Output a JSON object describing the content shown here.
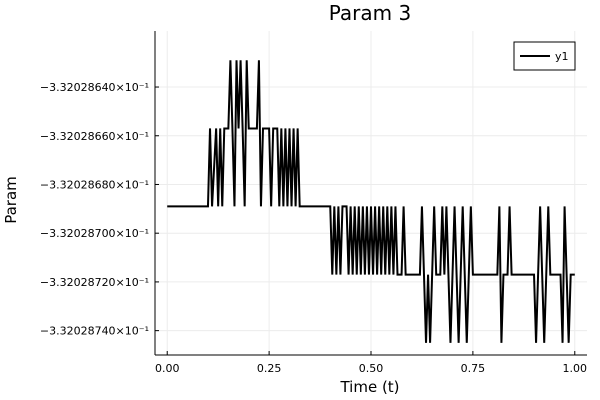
{
  "chart_data": {
    "type": "line",
    "title": "Param 3",
    "xlabel": "Time (t)",
    "ylabel": "Param",
    "xlim": [
      -0.03,
      1.03
    ],
    "ylim": [
      -0.33202875,
      -0.332028617
    ],
    "x_ticks": [
      {
        "value": 0.0,
        "label": "0.00"
      },
      {
        "value": 0.25,
        "label": "0.25"
      },
      {
        "value": 0.5,
        "label": "0.50"
      },
      {
        "value": 0.75,
        "label": "0.75"
      },
      {
        "value": 1.0,
        "label": "1.00"
      }
    ],
    "y_ticks": [
      {
        "value": -0.33202864,
        "label": "−3.32028640×10⁻¹"
      },
      {
        "value": -0.33202866,
        "label": "−3.32028660×10⁻¹"
      },
      {
        "value": -0.33202868,
        "label": "−3.32028680×10⁻¹"
      },
      {
        "value": -0.3320287,
        "label": "−3.32028700×10⁻¹"
      },
      {
        "value": -0.33202872,
        "label": "−3.32028720×10⁻¹"
      },
      {
        "value": -0.33202874,
        "label": "−3.32028740×10⁻¹"
      }
    ],
    "grid": true,
    "legend_position": "top-right",
    "colors": {
      "line": "#000000",
      "grid": "#ececec",
      "frame": "#000000"
    },
    "series": [
      {
        "name": "y1",
        "points": [
          [
            0.0,
            -0.332028689
          ],
          [
            0.1,
            -0.332028689
          ],
          [
            0.105,
            -0.332028657
          ],
          [
            0.11,
            -0.332028689
          ],
          [
            0.12,
            -0.332028657
          ],
          [
            0.125,
            -0.332028689
          ],
          [
            0.13,
            -0.332028657
          ],
          [
            0.135,
            -0.332028689
          ],
          [
            0.14,
            -0.332028657
          ],
          [
            0.15,
            -0.332028657
          ],
          [
            0.155,
            -0.332028629
          ],
          [
            0.16,
            -0.332028657
          ],
          [
            0.165,
            -0.332028689
          ],
          [
            0.17,
            -0.332028629
          ],
          [
            0.175,
            -0.332028657
          ],
          [
            0.18,
            -0.332028629
          ],
          [
            0.185,
            -0.332028657
          ],
          [
            0.19,
            -0.332028689
          ],
          [
            0.195,
            -0.332028629
          ],
          [
            0.2,
            -0.332028657
          ],
          [
            0.22,
            -0.332028657
          ],
          [
            0.225,
            -0.332028629
          ],
          [
            0.23,
            -0.332028689
          ],
          [
            0.235,
            -0.332028657
          ],
          [
            0.25,
            -0.332028657
          ],
          [
            0.255,
            -0.332028689
          ],
          [
            0.26,
            -0.332028657
          ],
          [
            0.27,
            -0.332028657
          ],
          [
            0.275,
            -0.332028689
          ],
          [
            0.28,
            -0.332028657
          ],
          [
            0.285,
            -0.332028689
          ],
          [
            0.29,
            -0.332028657
          ],
          [
            0.295,
            -0.332028689
          ],
          [
            0.3,
            -0.332028657
          ],
          [
            0.305,
            -0.332028689
          ],
          [
            0.31,
            -0.332028657
          ],
          [
            0.315,
            -0.332028689
          ],
          [
            0.32,
            -0.332028657
          ],
          [
            0.325,
            -0.332028689
          ],
          [
            0.4,
            -0.332028689
          ],
          [
            0.405,
            -0.332028717
          ],
          [
            0.41,
            -0.332028689
          ],
          [
            0.415,
            -0.332028717
          ],
          [
            0.42,
            -0.332028689
          ],
          [
            0.425,
            -0.332028717
          ],
          [
            0.43,
            -0.332028689
          ],
          [
            0.44,
            -0.332028689
          ],
          [
            0.445,
            -0.332028717
          ],
          [
            0.45,
            -0.332028689
          ],
          [
            0.455,
            -0.332028717
          ],
          [
            0.46,
            -0.332028689
          ],
          [
            0.465,
            -0.332028717
          ],
          [
            0.47,
            -0.332028689
          ],
          [
            0.475,
            -0.332028717
          ],
          [
            0.48,
            -0.332028689
          ],
          [
            0.485,
            -0.332028717
          ],
          [
            0.49,
            -0.332028689
          ],
          [
            0.495,
            -0.332028717
          ],
          [
            0.5,
            -0.332028689
          ],
          [
            0.505,
            -0.332028717
          ],
          [
            0.51,
            -0.332028689
          ],
          [
            0.515,
            -0.332028717
          ],
          [
            0.52,
            -0.332028689
          ],
          [
            0.525,
            -0.332028717
          ],
          [
            0.53,
            -0.332028689
          ],
          [
            0.535,
            -0.332028717
          ],
          [
            0.54,
            -0.332028689
          ],
          [
            0.545,
            -0.332028717
          ],
          [
            0.55,
            -0.332028689
          ],
          [
            0.555,
            -0.332028717
          ],
          [
            0.56,
            -0.332028689
          ],
          [
            0.565,
            -0.332028717
          ],
          [
            0.575,
            -0.332028717
          ],
          [
            0.58,
            -0.332028689
          ],
          [
            0.585,
            -0.332028717
          ],
          [
            0.6,
            -0.332028717
          ],
          [
            0.62,
            -0.332028717
          ],
          [
            0.625,
            -0.332028689
          ],
          [
            0.63,
            -0.332028717
          ],
          [
            0.635,
            -0.332028745
          ],
          [
            0.64,
            -0.332028717
          ],
          [
            0.645,
            -0.332028745
          ],
          [
            0.65,
            -0.332028717
          ],
          [
            0.655,
            -0.332028689
          ],
          [
            0.66,
            -0.332028717
          ],
          [
            0.67,
            -0.332028717
          ],
          [
            0.675,
            -0.332028689
          ],
          [
            0.68,
            -0.332028717
          ],
          [
            0.685,
            -0.332028689
          ],
          [
            0.69,
            -0.332028717
          ],
          [
            0.695,
            -0.332028745
          ],
          [
            0.7,
            -0.332028717
          ],
          [
            0.705,
            -0.332028689
          ],
          [
            0.71,
            -0.332028717
          ],
          [
            0.715,
            -0.332028745
          ],
          [
            0.72,
            -0.332028717
          ],
          [
            0.725,
            -0.332028689
          ],
          [
            0.73,
            -0.332028717
          ],
          [
            0.735,
            -0.332028745
          ],
          [
            0.74,
            -0.332028717
          ],
          [
            0.745,
            -0.332028689
          ],
          [
            0.75,
            -0.332028717
          ],
          [
            0.81,
            -0.332028717
          ],
          [
            0.815,
            -0.332028689
          ],
          [
            0.82,
            -0.332028745
          ],
          [
            0.825,
            -0.332028717
          ],
          [
            0.835,
            -0.332028717
          ],
          [
            0.84,
            -0.332028689
          ],
          [
            0.845,
            -0.332028717
          ],
          [
            0.9,
            -0.332028717
          ],
          [
            0.905,
            -0.332028745
          ],
          [
            0.91,
            -0.332028717
          ],
          [
            0.915,
            -0.332028689
          ],
          [
            0.92,
            -0.332028717
          ],
          [
            0.925,
            -0.332028745
          ],
          [
            0.93,
            -0.332028717
          ],
          [
            0.935,
            -0.332028689
          ],
          [
            0.94,
            -0.332028717
          ],
          [
            0.965,
            -0.332028717
          ],
          [
            0.97,
            -0.332028745
          ],
          [
            0.975,
            -0.332028689
          ],
          [
            0.98,
            -0.332028717
          ],
          [
            0.985,
            -0.332028745
          ],
          [
            0.99,
            -0.332028717
          ],
          [
            1.0,
            -0.332028717
          ]
        ]
      }
    ]
  }
}
